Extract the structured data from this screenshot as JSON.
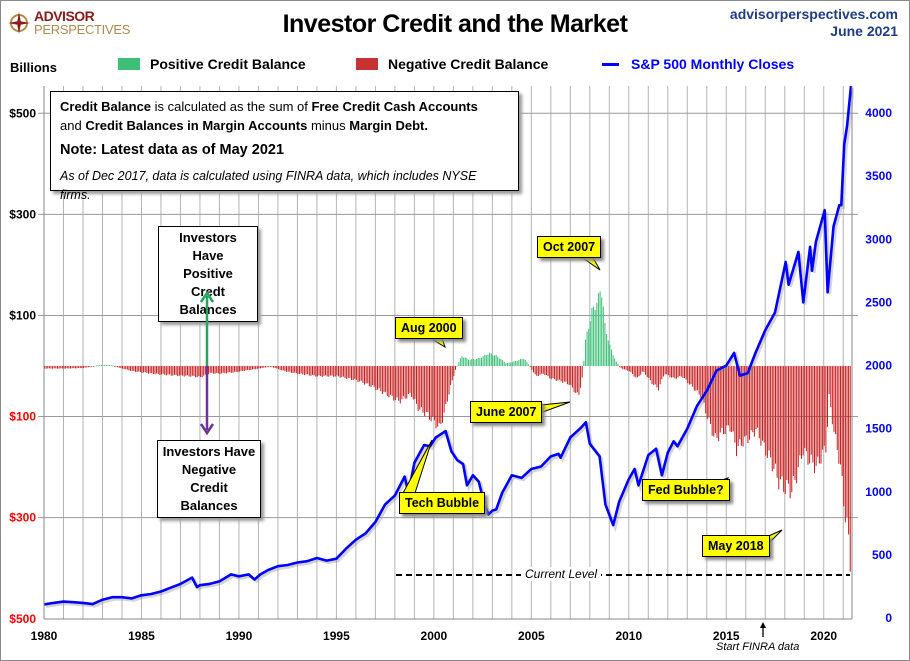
{
  "header": {
    "logo_line1": "ADVISOR",
    "logo_line2": "PERSPECTIVES",
    "title": "Investor Credit and the Market",
    "site": "advisorperspectives.com",
    "date": "June 2021"
  },
  "legend": {
    "units": "Billions",
    "positive": "Positive Credit Balance",
    "negative": "Negative Credit Balance",
    "sp500": "S&P 500 Monthly Closes"
  },
  "info_box": {
    "p1": "Credit Balance",
    "p2": " is calculated as the sum of ",
    "p3": "Free Credit Cash Accounts",
    "p4": "and ",
    "p5": "Credit Balances in Margin Accounts",
    "p6": " minus ",
    "p7": "Margin Debt.",
    "note": "Note: Latest data as of May 2021",
    "footnote": "As of Dec 2017, data is calculated using FINRA data, which includes NYSE firms."
  },
  "side_boxes": {
    "positive": [
      "Investors Have",
      "Positive",
      "Credt Balances"
    ],
    "negative": [
      "Investors Have",
      "Negative",
      "Credit Balances"
    ]
  },
  "callouts": {
    "oct2007": "Oct 2007",
    "aug2000": "Aug 2000",
    "jun2007": "June 2007",
    "tech": "Tech Bubble",
    "fed": "Fed Bubble?",
    "may2018": "May 2018",
    "current": "Current Level",
    "finra": "Start FINRA data"
  },
  "colors": {
    "positive": "#3dbf78",
    "negative": "#c81e1e",
    "sp500": "#0000ff",
    "callout": "#ffff00"
  },
  "chart_data": {
    "type": "bar+line",
    "title": "Investor Credit and the Market",
    "x_range": [
      1980,
      2021.45
    ],
    "x_ticks": [
      "1980",
      "1985",
      "1990",
      "1995",
      "2000",
      "2005",
      "2010",
      "2015",
      "2020"
    ],
    "left_axis": {
      "label": "Billions",
      "range": [
        -500,
        500
      ],
      "ticks_pos": [
        "$500",
        "$300",
        "$100"
      ],
      "ticks_neg": [
        "$100",
        "$300",
        "$500"
      ],
      "tick_values_pos": [
        500,
        300,
        100
      ],
      "tick_values_neg": [
        -100,
        -300,
        -500
      ]
    },
    "right_axis": {
      "range": [
        0,
        4000
      ],
      "ticks": [
        "0",
        "500",
        "1000",
        "1500",
        "2000",
        "2500",
        "3000",
        "3500",
        "4000"
      ]
    },
    "current_level": -414,
    "credit_balance": [
      [
        1980,
        -5
      ],
      [
        1981,
        -5
      ],
      [
        1982,
        -4
      ],
      [
        1982.8,
        2
      ],
      [
        1983.4,
        2
      ],
      [
        1983.8,
        -3
      ],
      [
        1984.5,
        -10
      ],
      [
        1985.5,
        -15
      ],
      [
        1986.5,
        -18
      ],
      [
        1987.5,
        -20
      ],
      [
        1988,
        -22
      ],
      [
        1988.5,
        -14
      ],
      [
        1989,
        -15
      ],
      [
        1989.8,
        -12
      ],
      [
        1990.5,
        -8
      ],
      [
        1991,
        -5
      ],
      [
        1991.6,
        -1
      ],
      [
        1992.3,
        -10
      ],
      [
        1993,
        -15
      ],
      [
        1994,
        -20
      ],
      [
        1995,
        -20
      ],
      [
        1996,
        -28
      ],
      [
        1996.8,
        -40
      ],
      [
        1997.5,
        -55
      ],
      [
        1998.2,
        -70
      ],
      [
        1998.8,
        -55
      ],
      [
        1999.2,
        -85
      ],
      [
        1999.6,
        -95
      ],
      [
        2000.1,
        -115
      ],
      [
        2000.25,
        -123
      ],
      [
        2000.5,
        -95
      ],
      [
        2000.8,
        -45
      ],
      [
        2001.1,
        -5
      ],
      [
        2001.4,
        20
      ],
      [
        2001.8,
        12
      ],
      [
        2002.3,
        15
      ],
      [
        2002.8,
        25
      ],
      [
        2003.2,
        20
      ],
      [
        2003.7,
        5
      ],
      [
        2004.2,
        10
      ],
      [
        2004.6,
        15
      ],
      [
        2004.9,
        0
      ],
      [
        2005.2,
        -20
      ],
      [
        2005.6,
        -15
      ],
      [
        2006,
        -25
      ],
      [
        2006.5,
        -30
      ],
      [
        2006.9,
        -35
      ],
      [
        2007.4,
        -60
      ],
      [
        2007.6,
        -20
      ],
      [
        2007.75,
        50
      ],
      [
        2008.1,
        110
      ],
      [
        2008.4,
        130
      ],
      [
        2008.55,
        160
      ],
      [
        2008.75,
        80
      ],
      [
        2009,
        40
      ],
      [
        2009.3,
        10
      ],
      [
        2009.6,
        -5
      ],
      [
        2010,
        -10
      ],
      [
        2010.4,
        -25
      ],
      [
        2010.7,
        -10
      ],
      [
        2011.2,
        -35
      ],
      [
        2011.5,
        -45
      ],
      [
        2011.8,
        -15
      ],
      [
        2012.3,
        -25
      ],
      [
        2012.7,
        -20
      ],
      [
        2013.2,
        -40
      ],
      [
        2013.7,
        -60
      ],
      [
        2014,
        -100
      ],
      [
        2014.4,
        -145
      ],
      [
        2014.8,
        -130
      ],
      [
        2015.2,
        -120
      ],
      [
        2015.5,
        -165
      ],
      [
        2015.8,
        -150
      ],
      [
        2016.2,
        -140
      ],
      [
        2016.5,
        -125
      ],
      [
        2016.9,
        -160
      ],
      [
        2017.3,
        -190
      ],
      [
        2017.7,
        -230
      ],
      [
        2018,
        -240
      ],
      [
        2018.35,
        -245
      ],
      [
        2018.7,
        -200
      ],
      [
        2018.9,
        -165
      ],
      [
        2019.2,
        -185
      ],
      [
        2019.6,
        -200
      ],
      [
        2019.9,
        -175
      ],
      [
        2020.1,
        -160
      ],
      [
        2020.25,
        -60
      ],
      [
        2020.5,
        -130
      ],
      [
        2020.8,
        -190
      ],
      [
        2021.1,
        -300
      ],
      [
        2021.3,
        -360
      ],
      [
        2021.4,
        -414
      ]
    ],
    "sp500": [
      [
        1980,
        107
      ],
      [
        1980.5,
        120
      ],
      [
        1981,
        130
      ],
      [
        1981.5,
        125
      ],
      [
        1982,
        120
      ],
      [
        1982.5,
        110
      ],
      [
        1983,
        145
      ],
      [
        1983.5,
        165
      ],
      [
        1984,
        165
      ],
      [
        1984.5,
        155
      ],
      [
        1985,
        180
      ],
      [
        1985.5,
        190
      ],
      [
        1986,
        210
      ],
      [
        1986.5,
        240
      ],
      [
        1987,
        270
      ],
      [
        1987.6,
        320
      ],
      [
        1987.85,
        245
      ],
      [
        1988,
        260
      ],
      [
        1988.5,
        270
      ],
      [
        1989,
        290
      ],
      [
        1989.6,
        345
      ],
      [
        1990,
        330
      ],
      [
        1990.5,
        345
      ],
      [
        1990.8,
        305
      ],
      [
        1991.1,
        345
      ],
      [
        1991.5,
        380
      ],
      [
        1992,
        410
      ],
      [
        1992.5,
        420
      ],
      [
        1993,
        440
      ],
      [
        1993.5,
        450
      ],
      [
        1994,
        475
      ],
      [
        1994.5,
        455
      ],
      [
        1995,
        470
      ],
      [
        1995.5,
        550
      ],
      [
        1996,
        620
      ],
      [
        1996.5,
        670
      ],
      [
        1997,
        760
      ],
      [
        1997.5,
        900
      ],
      [
        1998,
        970
      ],
      [
        1998.5,
        1120
      ],
      [
        1998.7,
        990
      ],
      [
        1999,
        1230
      ],
      [
        1999.5,
        1370
      ],
      [
        1999.8,
        1360
      ],
      [
        2000.1,
        1430
      ],
      [
        2000.3,
        1450
      ],
      [
        2000.6,
        1480
      ],
      [
        2000.9,
        1320
      ],
      [
        2001.2,
        1250
      ],
      [
        2001.5,
        1220
      ],
      [
        2001.7,
        1050
      ],
      [
        2002,
        1130
      ],
      [
        2002.3,
        1080
      ],
      [
        2002.6,
        900
      ],
      [
        2002.8,
        820
      ],
      [
        2003,
        850
      ],
      [
        2003.2,
        860
      ],
      [
        2003.5,
        990
      ],
      [
        2004,
        1130
      ],
      [
        2004.5,
        1110
      ],
      [
        2005,
        1180
      ],
      [
        2005.5,
        1200
      ],
      [
        2006,
        1280
      ],
      [
        2006.4,
        1300
      ],
      [
        2006.5,
        1270
      ],
      [
        2007,
        1430
      ],
      [
        2007.5,
        1500
      ],
      [
        2007.8,
        1550
      ],
      [
        2008,
        1380
      ],
      [
        2008.5,
        1280
      ],
      [
        2008.8,
        900
      ],
      [
        2009.2,
        735
      ],
      [
        2009.5,
        920
      ],
      [
        2010,
        1100
      ],
      [
        2010.3,
        1180
      ],
      [
        2010.5,
        1050
      ],
      [
        2011,
        1290
      ],
      [
        2011.4,
        1340
      ],
      [
        2011.7,
        1130
      ],
      [
        2012,
        1310
      ],
      [
        2012.3,
        1400
      ],
      [
        2012.5,
        1360
      ],
      [
        2013,
        1500
      ],
      [
        2013.5,
        1680
      ],
      [
        2014,
        1800
      ],
      [
        2014.5,
        1960
      ],
      [
        2015,
        2000
      ],
      [
        2015.4,
        2100
      ],
      [
        2015.7,
        1920
      ],
      [
        2016.1,
        1940
      ],
      [
        2016.5,
        2100
      ],
      [
        2017,
        2280
      ],
      [
        2017.5,
        2420
      ],
      [
        2018.05,
        2820
      ],
      [
        2018.2,
        2640
      ],
      [
        2018.7,
        2900
      ],
      [
        2018.95,
        2500
      ],
      [
        2019.3,
        2940
      ],
      [
        2019.4,
        2750
      ],
      [
        2019.6,
        2980
      ],
      [
        2020.05,
        3230
      ],
      [
        2020.2,
        2580
      ],
      [
        2020.5,
        3100
      ],
      [
        2020.8,
        3270
      ],
      [
        2020.9,
        3270
      ],
      [
        2021.05,
        3750
      ],
      [
        2021.2,
        3900
      ],
      [
        2021.4,
        4250
      ]
    ]
  }
}
